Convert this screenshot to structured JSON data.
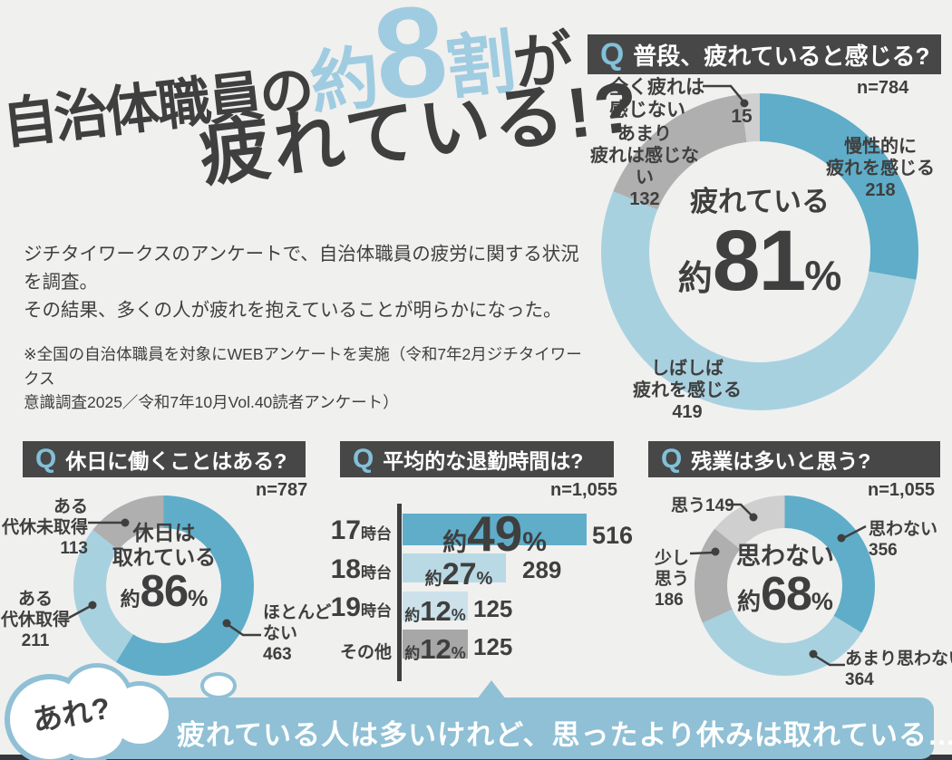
{
  "page": {
    "background": "#F0F0EF",
    "accent_teal": "#5FADC9",
    "accent_light_blue": "#A8D1E0",
    "accent_pale_blue": "#CCE1EA",
    "gray": "#AFAFAF",
    "light_gray": "#CFCFCF",
    "header_bg": "#474747",
    "q_mark_color": "#82C0D9",
    "banner_color": "#8FC0D5",
    "text_dark": "#3F3F3F",
    "title_highlight": "#9FCCE1"
  },
  "title": {
    "part1": "自治体職員の",
    "about": "約",
    "number": "8",
    "unit": "割",
    "part2": "が",
    "line2": "疲れている!?"
  },
  "intro": {
    "line1": "ジチタイワークスのアンケートで、自治体職員の疲労に関する状況を調査。",
    "line2": "その結果、多くの人が疲れを抱えていることが明らかになった。",
    "note1": "※全国の自治体職員を対象にWEBアンケートを実施（令和7年2月ジチタイワークス",
    "note2": "意識調査2025／令和7年10月Vol.40読者アンケート）"
  },
  "q1": {
    "q": "Q",
    "question": "普段、疲れていると感じる?",
    "n": "n=784",
    "center_label": "疲れている",
    "about": "約",
    "value": "81",
    "percent": "%",
    "chronic1": "慢性的に",
    "chronic2": "疲れを感じる",
    "often1": "しばしば",
    "often2": "疲れを感じる",
    "rarely1": "あまり",
    "rarely2": "疲れは感じない",
    "none1": "全く疲れは",
    "none2": "感じない"
  },
  "q2": {
    "q": "Q",
    "question": "休日に働くことはある?",
    "n": "n=787",
    "center1": "休日は",
    "center2": "取れている",
    "about": "約",
    "value": "86",
    "percent": "%",
    "untaken1": "ある",
    "untaken2": "代休未取得",
    "taken1": "ある",
    "taken2": "代休取得",
    "none1": "ほとんど",
    "none2": "ない"
  },
  "q3": {
    "q": "Q",
    "question": "平均的な退勤時間は?",
    "n": "n=1,055",
    "rows": [
      {
        "big": "17",
        "small": "時台",
        "about": "約",
        "pct": "49",
        "unit": "%"
      },
      {
        "big": "18",
        "small": "時台",
        "about": "約",
        "pct": "27",
        "unit": "%"
      },
      {
        "big": "19",
        "small": "時台",
        "about": "約",
        "pct": "12",
        "unit": "%"
      },
      {
        "big": "",
        "small": "その他",
        "about": "約",
        "pct": "12",
        "unit": "%"
      }
    ]
  },
  "q4": {
    "q": "Q",
    "question": "残業は多いと思う?",
    "n": "n=1,055",
    "center1": "思わない",
    "about": "約",
    "value": "68",
    "percent": "%",
    "no1": "思わない",
    "rather1": "あまり思わない",
    "little1": "少し",
    "little2": "思う",
    "yes1": "思う"
  },
  "banner": {
    "bubble": "あれ?",
    "text": "疲れている人は多いけれど、思ったより休みは取れている…?"
  },
  "chart_data": [
    {
      "type": "donut",
      "title": "普段、疲れていると感じる?",
      "n": 784,
      "center_label": "疲れている 約81%",
      "segments": [
        {
          "label": "慢性的に疲れを感じる",
          "value": 218,
          "color": "#5FADC9"
        },
        {
          "label": "しばしば疲れを感じる",
          "value": 419,
          "color": "#A8D1E0"
        },
        {
          "label": "あまり疲れは感じない",
          "value": 132,
          "color": "#AFAFAF"
        },
        {
          "label": "全く疲れは感じない",
          "value": 15,
          "color": "#CFCFCF"
        }
      ]
    },
    {
      "type": "donut",
      "title": "休日に働くことはある?",
      "n": 787,
      "center_label": "休日は取れている 約86%",
      "segments": [
        {
          "label": "ほとんどない",
          "value": 463,
          "color": "#5FADC9"
        },
        {
          "label": "ある 代休取得",
          "value": 211,
          "color": "#A8D1E0"
        },
        {
          "label": "ある 代休未取得",
          "value": 113,
          "color": "#AFAFAF"
        }
      ]
    },
    {
      "type": "bar",
      "title": "平均的な退勤時間は?",
      "n": 1055,
      "categories": [
        "17時台",
        "18時台",
        "19時台",
        "その他"
      ],
      "values": [
        516,
        289,
        125,
        125
      ],
      "percent_labels": [
        "約49%",
        "約27%",
        "約12%",
        "約12%"
      ],
      "colors": [
        "#5FADC9",
        "#B9D9E4",
        "#CCE1EA",
        "#A7A7A7"
      ]
    },
    {
      "type": "donut",
      "title": "残業は多いと思う?",
      "n": 1055,
      "center_label": "思わない 約68%",
      "segments": [
        {
          "label": "思わない",
          "value": 356,
          "color": "#5FADC9"
        },
        {
          "label": "あまり思わない",
          "value": 364,
          "color": "#A8D1E0"
        },
        {
          "label": "少し思う",
          "value": 186,
          "color": "#AFAFAF"
        },
        {
          "label": "思う",
          "value": 149,
          "color": "#CFCFCF"
        }
      ]
    }
  ]
}
